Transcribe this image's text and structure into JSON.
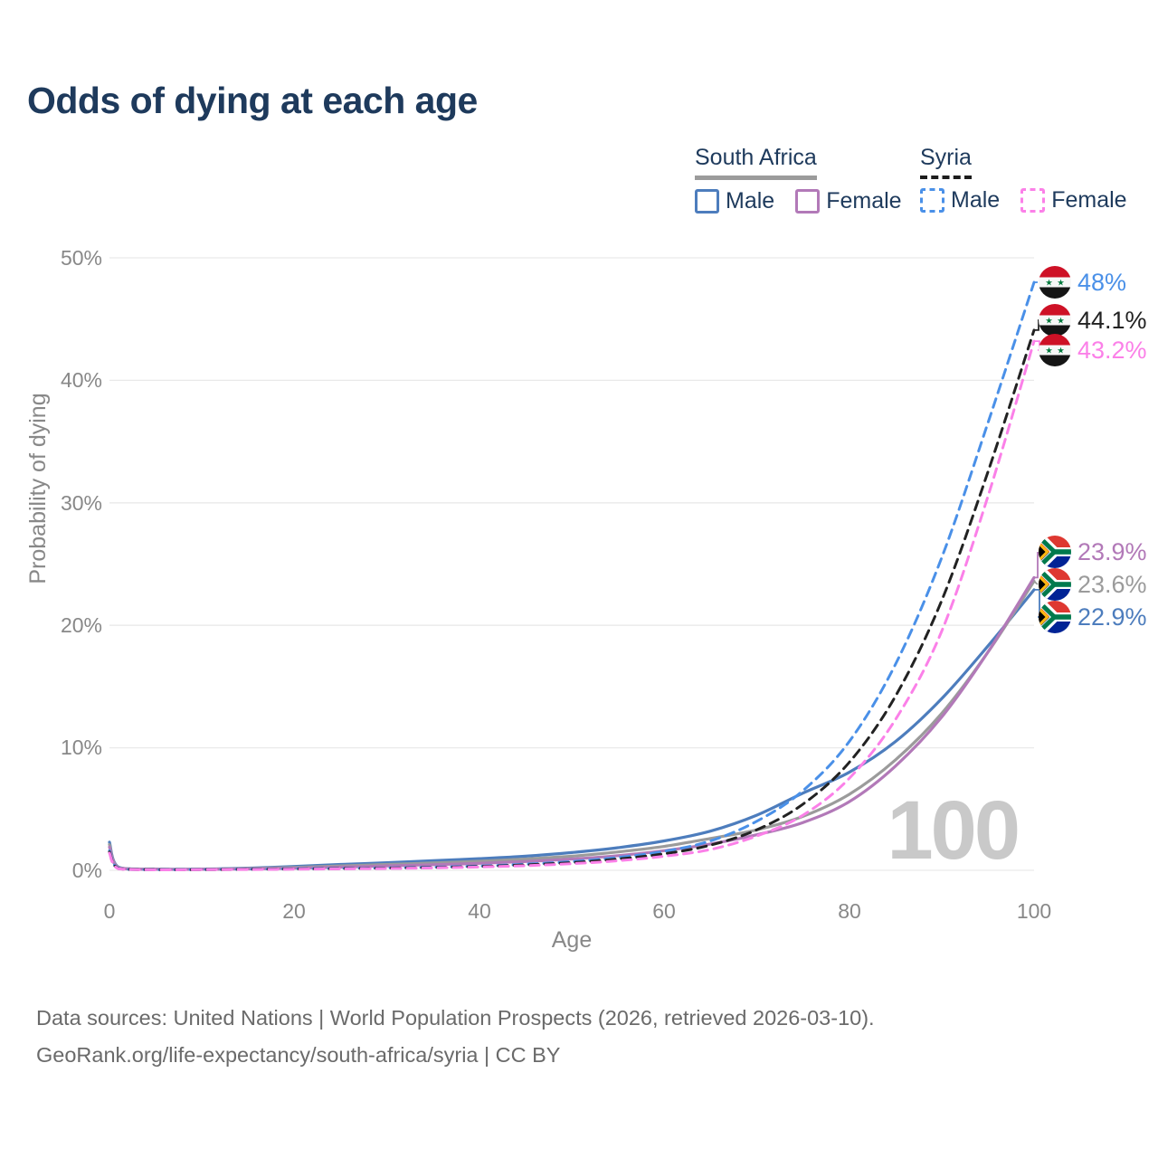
{
  "title": "Odds of dying at each age",
  "legend": {
    "groups": [
      {
        "label": "South Africa",
        "line_style": "solid",
        "items": [
          {
            "label": "Male",
            "color": "#4d7dbd"
          },
          {
            "label": "Female",
            "color": "#b279b8"
          }
        ]
      },
      {
        "label": "Syria",
        "line_style": "dashed",
        "items": [
          {
            "label": "Male",
            "color": "#4a90e8"
          },
          {
            "label": "Female",
            "color": "#fb80e8"
          }
        ]
      }
    ]
  },
  "axes": {
    "y": {
      "title": "Probability of dying",
      "ticks": [
        "0%",
        "10%",
        "20%",
        "30%",
        "40%",
        "50%"
      ]
    },
    "x": {
      "title": "Age",
      "ticks": [
        "0",
        "20",
        "40",
        "60",
        "80",
        "100"
      ]
    }
  },
  "watermark": "100",
  "chart_data": {
    "type": "line",
    "title": "Odds of dying at each age",
    "xlabel": "Age",
    "ylabel": "Probability of dying",
    "xlim": [
      0,
      100
    ],
    "ylim_percent": [
      0,
      50
    ],
    "grid": true,
    "legend_position": "top-right",
    "x_ticks": [
      0,
      20,
      40,
      60,
      80,
      100
    ],
    "y_ticks_percent": [
      0,
      10,
      20,
      30,
      40,
      50
    ],
    "ages": [
      0,
      1,
      5,
      10,
      15,
      20,
      25,
      30,
      35,
      40,
      45,
      50,
      55,
      60,
      65,
      70,
      75,
      80,
      85,
      90,
      95,
      100
    ],
    "series": [
      {
        "id": "za-male",
        "name": "South Africa Male",
        "country": "South Africa",
        "sex": "Male",
        "color": "#4d7dbd",
        "dash": false,
        "end_label": "22.9%",
        "values": [
          2.3,
          0.25,
          0.1,
          0.1,
          0.18,
          0.32,
          0.48,
          0.62,
          0.78,
          0.95,
          1.15,
          1.45,
          1.85,
          2.4,
          3.2,
          4.5,
          6.3,
          8.0,
          10.5,
          14.0,
          18.3,
          22.9
        ]
      },
      {
        "id": "za-both",
        "name": "South Africa Both sexes",
        "country": "South Africa",
        "sex": "Both",
        "color": "#9b9b9b",
        "dash": false,
        "end_label": "23.6%",
        "values": [
          2.1,
          0.22,
          0.09,
          0.09,
          0.14,
          0.24,
          0.36,
          0.48,
          0.6,
          0.74,
          0.92,
          1.15,
          1.5,
          1.95,
          2.6,
          3.3,
          4.4,
          6.2,
          9.0,
          12.8,
          17.8,
          23.6
        ]
      },
      {
        "id": "za-female",
        "name": "South Africa Female",
        "country": "South Africa",
        "sex": "Female",
        "color": "#b279b8",
        "dash": false,
        "end_label": "23.9%",
        "values": [
          1.9,
          0.2,
          0.08,
          0.08,
          0.11,
          0.17,
          0.26,
          0.36,
          0.46,
          0.57,
          0.72,
          0.92,
          1.2,
          1.6,
          2.15,
          2.9,
          3.9,
          5.6,
          8.5,
          12.5,
          17.8,
          23.9
        ]
      },
      {
        "id": "sy-male",
        "name": "Syria Male",
        "country": "Syria",
        "sex": "Male",
        "color": "#4a90e8",
        "dash": true,
        "end_label": "48%",
        "values": [
          1.6,
          0.15,
          0.05,
          0.06,
          0.09,
          0.13,
          0.16,
          0.2,
          0.26,
          0.35,
          0.5,
          0.72,
          1.05,
          1.55,
          2.4,
          4.0,
          6.5,
          10.5,
          16.8,
          25.5,
          36.5,
          48.0
        ]
      },
      {
        "id": "sy-both",
        "name": "Syria Both sexes",
        "country": "Syria",
        "sex": "Both",
        "color": "#222222",
        "dash": true,
        "end_label": "44.1%",
        "values": [
          1.5,
          0.13,
          0.05,
          0.05,
          0.08,
          0.11,
          0.14,
          0.18,
          0.23,
          0.31,
          0.44,
          0.63,
          0.92,
          1.35,
          2.05,
          3.3,
          5.4,
          8.8,
          14.2,
          22.0,
          32.5,
          44.1
        ]
      },
      {
        "id": "sy-female",
        "name": "Syria Female",
        "country": "Syria",
        "sex": "Female",
        "color": "#fb80e8",
        "dash": true,
        "end_label": "43.2%",
        "values": [
          1.4,
          0.12,
          0.04,
          0.05,
          0.07,
          0.09,
          0.12,
          0.15,
          0.2,
          0.27,
          0.38,
          0.54,
          0.78,
          1.15,
          1.7,
          2.8,
          4.5,
          7.5,
          12.3,
          19.5,
          30.5,
          43.2
        ]
      }
    ]
  },
  "end_labels": [
    {
      "text": "48%",
      "series": "Syria Male",
      "flag": "Syria",
      "color": "#4a90e8"
    },
    {
      "text": "44.1%",
      "series": "Syria Both sexes",
      "flag": "Syria",
      "color": "#222222"
    },
    {
      "text": "43.2%",
      "series": "Syria Female",
      "flag": "Syria",
      "color": "#fb80e8"
    },
    {
      "text": "23.9%",
      "series": "South Africa Female",
      "flag": "South Africa",
      "color": "#b279b8"
    },
    {
      "text": "23.6%",
      "series": "South Africa Both sexes",
      "flag": "South Africa",
      "color": "#9b9b9b"
    },
    {
      "text": "22.9%",
      "series": "South Africa Male",
      "flag": "South Africa",
      "color": "#4d7dbd"
    }
  ],
  "colors": {
    "title_text": "#1e3a5c",
    "axis_text": "#888888",
    "gridline": "#e9e9e9",
    "watermark": "#c9c9c9",
    "footer_text": "#6a6a6a"
  },
  "footer": {
    "line1": "Data sources: United Nations | World Population Prospects (2026, retrieved 2026-03-10).",
    "line2": "GeoRank.org/life-expectancy/south-africa/syria | CC BY"
  }
}
